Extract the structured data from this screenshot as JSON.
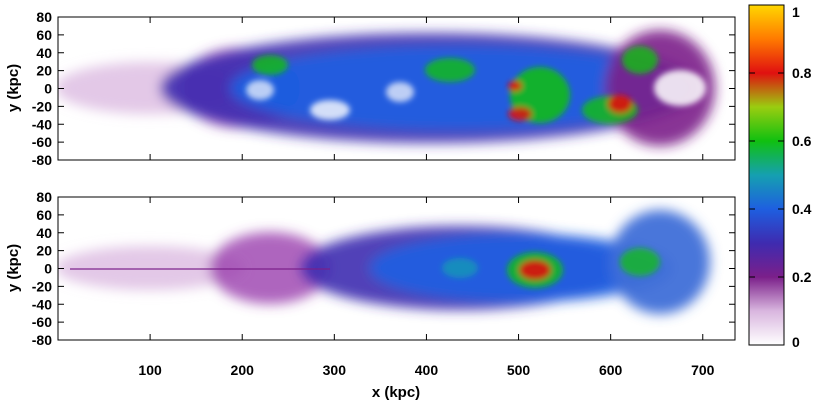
{
  "chart_data": [
    {
      "type": "heatmap",
      "title": "",
      "xlabel": "",
      "ylabel": "y (kpc)",
      "xlim": [
        0,
        735
      ],
      "ylim": [
        -80,
        80
      ],
      "yticks": [
        80,
        60,
        40,
        20,
        0,
        -20,
        -40,
        -60,
        -80
      ],
      "colorscale": "gnuplot rainbow-like: white-purple-blue-green-yellow-red",
      "features": [
        {
          "x": 520,
          "y": 10,
          "value": 0.75
        },
        {
          "x": 625,
          "y": -15,
          "value": 0.8
        },
        {
          "x": 510,
          "y": -20,
          "value": 0.7
        },
        {
          "x": 640,
          "y": 40,
          "value": 0.6
        },
        {
          "x": 450,
          "y": 20,
          "value": 0.5
        },
        {
          "x": 380,
          "y": -20,
          "value": 0.45
        },
        {
          "x": 270,
          "y": 25,
          "value": 0.55
        },
        {
          "x": 120,
          "y": 0,
          "value": 0.15
        }
      ]
    },
    {
      "type": "heatmap",
      "title": "",
      "xlabel": "x (kpc)",
      "ylabel": "y (kpc)",
      "xlim": [
        0,
        735
      ],
      "ylim": [
        -80,
        80
      ],
      "yticks": [
        80,
        60,
        40,
        20,
        0,
        -20,
        -40,
        -60,
        -80
      ],
      "xticks": [
        100,
        200,
        300,
        400,
        500,
        600,
        700
      ],
      "colorscale": "gnuplot rainbow-like: white-purple-blue-green-yellow-red",
      "features": [
        {
          "x": 530,
          "y": -5,
          "value": 0.85
        },
        {
          "x": 640,
          "y": 5,
          "value": 0.55
        },
        {
          "x": 460,
          "y": 0,
          "value": 0.4
        },
        {
          "x": 380,
          "y": 0,
          "value": 0.35
        },
        {
          "x": 260,
          "y": 10,
          "value": 0.3
        },
        {
          "x": 120,
          "y": 0,
          "value": 0.15
        }
      ]
    }
  ],
  "colorbar": {
    "ticks": [
      0,
      0.2,
      0.4,
      0.6,
      0.8,
      1
    ],
    "tick_labels": [
      "0",
      "0.2",
      "0.4",
      "0.6",
      "0.8",
      "1"
    ],
    "colors": [
      "#ffffff",
      "#7b1f8a",
      "#1e5fe0",
      "#10c010",
      "#e01010",
      "#ffd700"
    ]
  }
}
